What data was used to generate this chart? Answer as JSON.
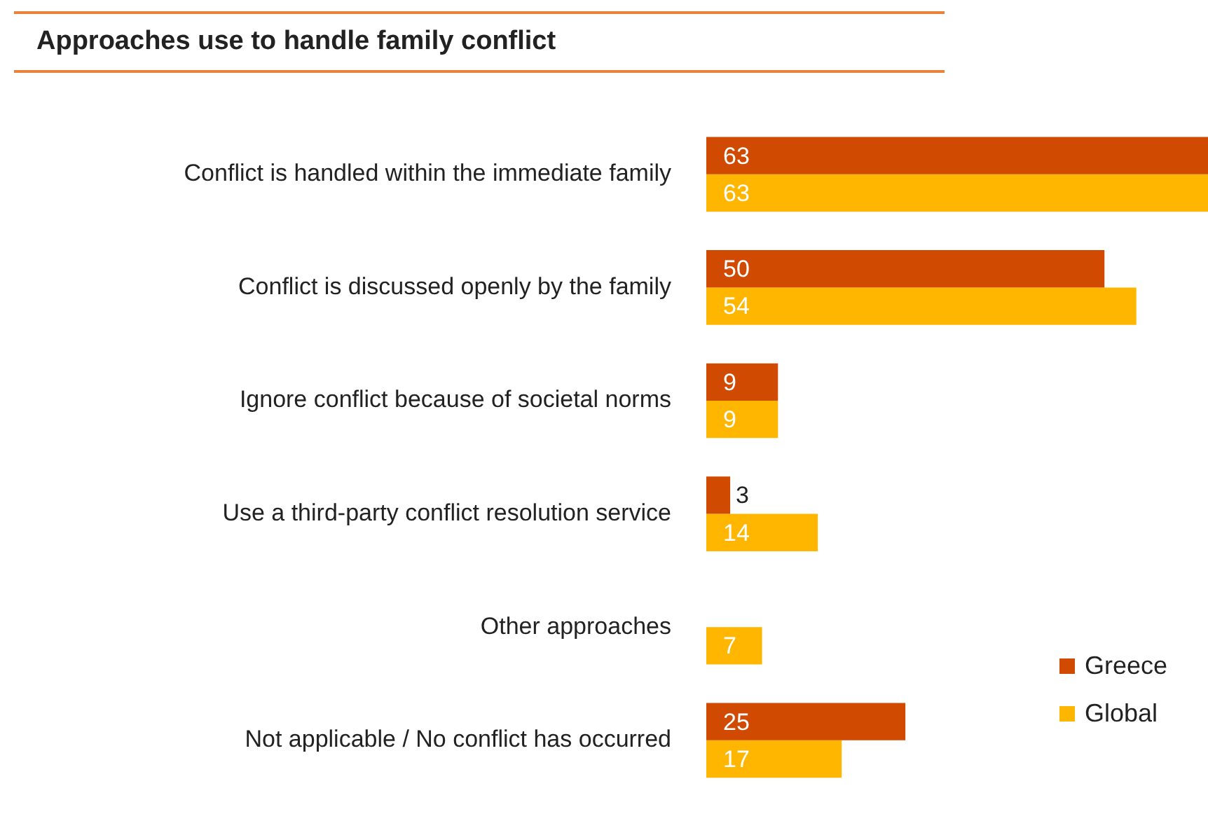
{
  "chart_data": {
    "type": "bar",
    "orientation": "horizontal",
    "title": "Approaches use to handle family conflict",
    "categories": [
      "Conflict is handled within the immediate family",
      "Conflict is discussed openly by the family",
      "Ignore conflict because of societal norms",
      "Use a third-party conflict resolution service",
      "Other approaches",
      "Not applicable / No conflict has occurred"
    ],
    "series": [
      {
        "name": "Greece",
        "color": "#d04a02",
        "values": [
          63,
          50,
          9,
          3,
          null,
          25
        ]
      },
      {
        "name": "Global",
        "color": "#ffb600",
        "values": [
          63,
          54,
          9,
          14,
          7,
          17
        ]
      }
    ],
    "data_labels": true,
    "legend": "bottom right"
  }
}
